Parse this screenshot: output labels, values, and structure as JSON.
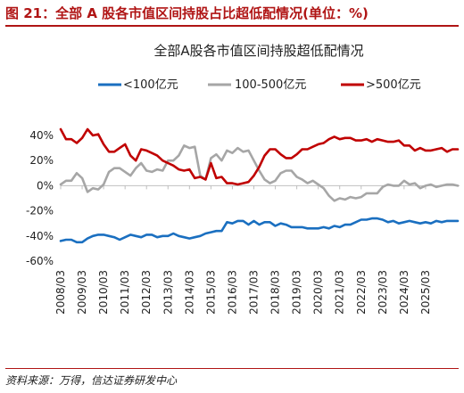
{
  "figure_title": "图 21：全部 A 股各市值区间持股占比超低配情况(单位：%)",
  "source": "资料来源：万得，信达证券研发中心",
  "colors": {
    "brand": "#b01515",
    "axis": "#bfbfbf"
  },
  "chart_data": {
    "type": "line",
    "title": "全部A股各市值区间持股超低配情况",
    "xlabel": "",
    "ylabel": "",
    "ylim": [
      -60,
      50
    ],
    "yticks": [
      -60,
      -40,
      -20,
      0,
      20,
      40
    ],
    "ytick_labels": [
      "-60%",
      "-40%",
      "-20%",
      "0%",
      "20%",
      "40%"
    ],
    "x_start": "2008/03",
    "x_step_months": 3,
    "x_tick_labels": [
      "2008/03",
      "2009/03",
      "2010/03",
      "2011/03",
      "2012/03",
      "2013/03",
      "2014/03",
      "2015/03",
      "2016/03",
      "2017/03",
      "2018/03",
      "2019/03",
      "2020/03",
      "2021/03",
      "2022/03",
      "2023/03",
      "2024/03",
      "2025/03"
    ],
    "legend_position": "top",
    "grid": false,
    "series": [
      {
        "name": "<100亿元",
        "color": "#1a6fc0",
        "values": [
          -44,
          -43,
          -43,
          -45,
          -45,
          -42,
          -40,
          -39,
          -39,
          -40,
          -41,
          -43,
          -41,
          -39,
          -40,
          -41,
          -39,
          -39,
          -41,
          -40,
          -40,
          -38,
          -40,
          -41,
          -42,
          -41,
          -40,
          -38,
          -37,
          -36,
          -36,
          -29,
          -30,
          -28,
          -28,
          -31,
          -28,
          -31,
          -29,
          -29,
          -32,
          -30,
          -31,
          -33,
          -33,
          -33,
          -34,
          -34,
          -34,
          -33,
          -34,
          -32,
          -33,
          -31,
          -31,
          -29,
          -27,
          -27,
          -26,
          -26,
          -27,
          -29,
          -28,
          -30,
          -29,
          -28,
          -29,
          -30,
          -29,
          -30,
          -28,
          -29,
          -28,
          -28,
          -28
        ]
      },
      {
        "name": "100-500亿元",
        "color": "#a6a6a6",
        "values": [
          1,
          4,
          4,
          10,
          6,
          -5,
          -2,
          -3,
          1,
          11,
          14,
          14,
          11,
          8,
          14,
          18,
          12,
          11,
          13,
          12,
          20,
          20,
          24,
          32,
          30,
          31,
          8,
          5,
          22,
          25,
          20,
          28,
          26,
          30,
          27,
          28,
          20,
          12,
          5,
          2,
          4,
          10,
          12,
          12,
          7,
          5,
          2,
          4,
          1,
          -2,
          -8,
          -12,
          -10,
          -11,
          -9,
          -10,
          -9,
          -6,
          -6,
          -6,
          -1,
          1,
          0,
          0,
          4,
          1,
          2,
          -2,
          0,
          1,
          -1,
          0,
          1,
          1,
          0
        ]
      },
      {
        "name": ">500亿元",
        "color": "#c00000",
        "values": [
          45,
          37,
          37,
          34,
          38,
          45,
          40,
          41,
          33,
          27,
          27,
          30,
          33,
          24,
          20,
          29,
          28,
          26,
          24,
          20,
          18,
          16,
          13,
          12,
          13,
          6,
          7,
          5,
          18,
          6,
          7,
          2,
          2,
          1,
          2,
          3,
          8,
          15,
          24,
          29,
          29,
          25,
          22,
          22,
          25,
          29,
          29,
          31,
          33,
          34,
          37,
          39,
          37,
          38,
          38,
          36,
          36,
          37,
          35,
          37,
          36,
          35,
          35,
          36,
          32,
          32,
          28,
          30,
          28,
          28,
          29,
          30,
          27,
          29,
          29
        ]
      }
    ]
  }
}
